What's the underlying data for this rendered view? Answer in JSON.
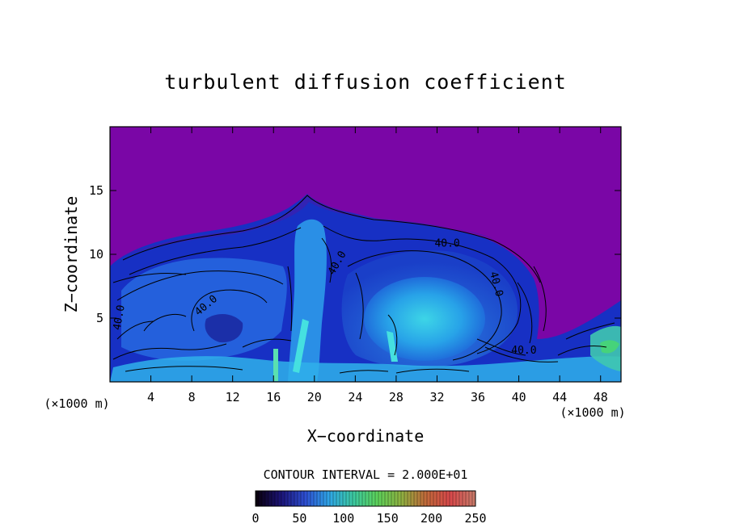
{
  "chart_data": {
    "type": "heatmap",
    "title": "turbulent diffusion coefficient",
    "xlabel": "X−coordinate",
    "ylabel": "Z−coordinate",
    "x_unit_left": "(×1000 m)",
    "x_unit_right": "(×1000 m)",
    "xlim": [
      0,
      50
    ],
    "ylim": [
      0,
      20
    ],
    "xticks": [
      4,
      8,
      12,
      16,
      20,
      24,
      28,
      32,
      36,
      40,
      44,
      48
    ],
    "yticks": [
      5,
      10,
      15
    ],
    "contour_interval_text": "CONTOUR INTERVAL = 2.000E+01",
    "contour_labels": [
      {
        "text": "40.0",
        "x": 33.0,
        "y": 10.6,
        "angle": 0
      },
      {
        "text": "40.0",
        "x": 22.5,
        "y": 9.2,
        "angle": -60
      },
      {
        "text": "40.0",
        "x": 37.5,
        "y": 7.6,
        "angle": 75
      },
      {
        "text": "40.0",
        "x": 9.6,
        "y": 5.8,
        "angle": -40
      },
      {
        "text": "40.0",
        "x": 1.2,
        "y": 5.0,
        "angle": -80
      },
      {
        "text": "40.0",
        "x": 40.5,
        "y": 2.2,
        "angle": 0
      }
    ],
    "colorbar": {
      "min": 0,
      "max": 250,
      "ticks": [
        0,
        50,
        100,
        150,
        200,
        250
      ],
      "colors": [
        "#0a0010",
        "#1c1478",
        "#2d4fd2",
        "#2fa6e6",
        "#3cc9a0",
        "#5dd15a",
        "#8fb040",
        "#c06a3a",
        "#d8484a",
        "#c97868"
      ]
    }
  }
}
